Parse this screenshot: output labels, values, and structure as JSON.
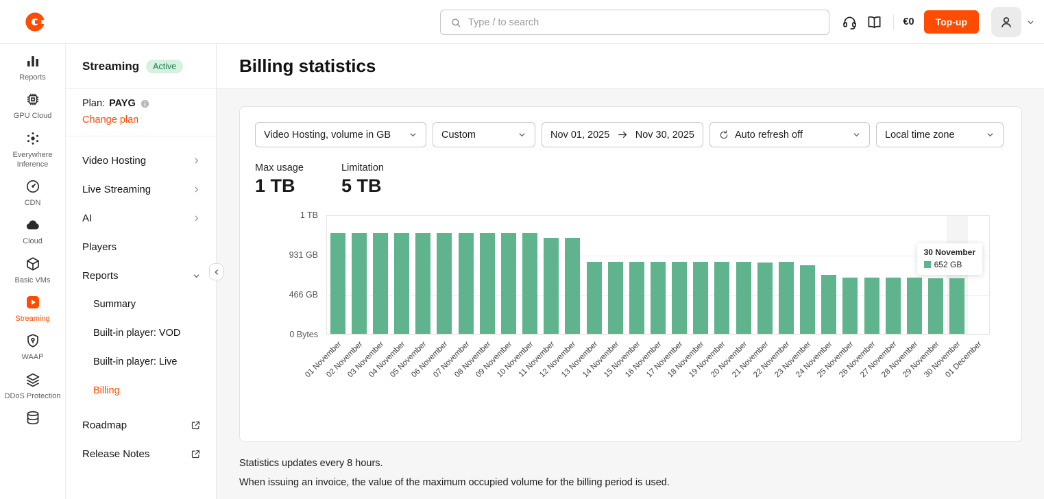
{
  "topbar": {
    "search_placeholder": "Type / to search",
    "balance": "€0",
    "topup_label": "Top-up"
  },
  "rail": {
    "items": [
      {
        "label": "Reports",
        "icon": "bar-chart-icon",
        "active": false
      },
      {
        "label": "GPU Cloud",
        "icon": "chip-icon",
        "active": false
      },
      {
        "label": "Everywhere Inference",
        "icon": "inference-icon",
        "active": false
      },
      {
        "label": "CDN",
        "icon": "cdn-icon",
        "active": false
      },
      {
        "label": "Cloud",
        "icon": "cloud-icon",
        "active": false
      },
      {
        "label": "Basic VMs",
        "icon": "vm-icon",
        "active": false
      },
      {
        "label": "Streaming",
        "icon": "play-icon",
        "active": true
      },
      {
        "label": "WAAP",
        "icon": "shield-icon",
        "active": false
      },
      {
        "label": "DDoS Protection",
        "icon": "layers-icon",
        "active": false
      },
      {
        "label": "",
        "icon": "database-icon",
        "active": false
      }
    ]
  },
  "sidebar": {
    "title": "Streaming",
    "badge": "Active",
    "plan_label": "Plan:",
    "plan_value": "PAYG",
    "change_plan": "Change plan",
    "menu": [
      {
        "label": "Video Hosting",
        "chevron": "right"
      },
      {
        "label": "Live Streaming",
        "chevron": "right"
      },
      {
        "label": "AI",
        "chevron": "right"
      },
      {
        "label": "Players"
      },
      {
        "label": "Reports",
        "chevron": "down"
      },
      {
        "label": "Summary",
        "sub": true
      },
      {
        "label": "Built-in player: VOD",
        "sub": true
      },
      {
        "label": "Built-in player: Live",
        "sub": true
      },
      {
        "label": "Billing",
        "sub": true,
        "active": true
      },
      {
        "label": "Roadmap",
        "external": true,
        "spacer": true
      },
      {
        "label": "Release Notes",
        "external": true
      }
    ]
  },
  "main": {
    "title": "Billing statistics",
    "filters": {
      "metric": "Video Hosting, volume in GB",
      "preset": "Custom",
      "date_from": "Nov 01, 2025",
      "date_to": "Nov 30, 2025",
      "auto_refresh": "Auto refresh off",
      "timezone": "Local time zone"
    },
    "stats": {
      "max_usage_label": "Max usage",
      "max_usage_value": "1 TB",
      "limitation_label": "Limitation",
      "limitation_value": "5 TB"
    },
    "notes": [
      "Statistics updates every 8 hours.",
      "When issuing an invoice, the value of the maximum occupied volume for the billing period is used."
    ]
  },
  "chart_data": {
    "type": "bar",
    "unit": "GB",
    "categories": [
      "01 November",
      "02 November",
      "03 November",
      "04 November",
      "05 November",
      "06 November",
      "07 November",
      "08 November",
      "09 November",
      "10 November",
      "11 November",
      "12 November",
      "13 November",
      "14 November",
      "15 November",
      "16 November",
      "17 November",
      "18 November",
      "19 November",
      "20 November",
      "21 November",
      "22 November",
      "23 November",
      "24 November",
      "25 November",
      "26 November",
      "27 November",
      "28 November",
      "29 November",
      "30 November",
      "01 December"
    ],
    "values": [
      1180,
      1180,
      1180,
      1180,
      1180,
      1180,
      1180,
      1180,
      1180,
      1180,
      1125,
      1125,
      845,
      845,
      845,
      845,
      845,
      845,
      845,
      845,
      838,
      845,
      800,
      690,
      655,
      655,
      655,
      655,
      652,
      652,
      0
    ],
    "ylim": [
      0,
      1397
    ],
    "yticks": [
      {
        "value": 0,
        "label": "0 Bytes"
      },
      {
        "value": 466,
        "label": "466 GB"
      },
      {
        "value": 931,
        "label": "931 GB"
      },
      {
        "value": 1397,
        "label": "1 TB"
      }
    ],
    "grid": true,
    "legend_position": "none",
    "bar_color": "#5fb48e",
    "hover_index": 29,
    "tooltip": {
      "title": "30 November",
      "value": "652 GB"
    }
  }
}
